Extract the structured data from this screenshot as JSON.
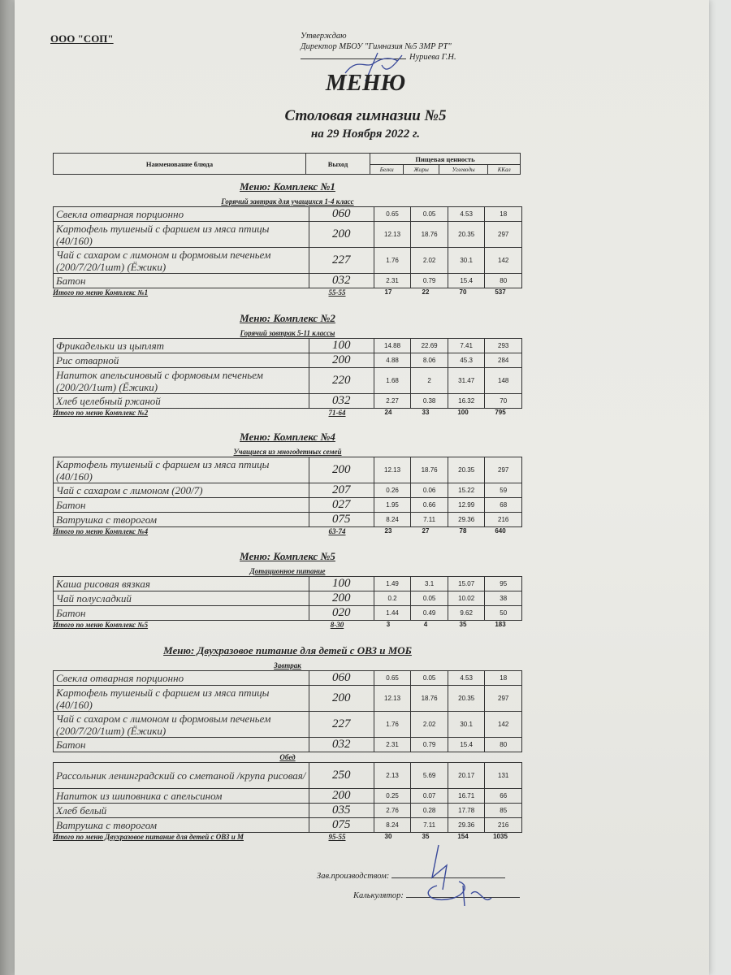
{
  "header": {
    "organization": "ООО \"СОП\"",
    "approval_lines": [
      "Утверждаю",
      "Директор МБОУ \"Гимназия №5 ЗМР РТ\"",
      "Нуриева Г.Н."
    ],
    "title": "МЕНЮ",
    "subtitle": "Столовая гимназии №5",
    "date": "на 29 Ноября 2022 г."
  },
  "table_header": {
    "name": "Наименование блюда",
    "output": "Выход",
    "nutrition": "Пищевая ценность",
    "columns": [
      "Белки",
      "Жиры",
      "Углеводы",
      "ККал"
    ]
  },
  "sections": [
    {
      "title": "Меню: Комплекс №1",
      "groups": [
        {
          "subtitle": "Горячий завтрак для учащихся 1-4 класс",
          "rows": [
            {
              "name": "Свекла отварная порционно",
              "output": "060",
              "values": [
                "0.65",
                "0.05",
                "4.53",
                "18"
              ]
            },
            {
              "name": "Картофель тушеный с фаршем из мяса птицы (40/160)",
              "output": "200",
              "values": [
                "12.13",
                "18.76",
                "20.35",
                "297"
              ]
            },
            {
              "name": "Чай с сахаром с лимоном и формовым печеньем (200/7/20/1шт) (Ёжики)",
              "output": "227",
              "values": [
                "1.76",
                "2.02",
                "30.1",
                "142"
              ]
            },
            {
              "name": "Батон",
              "output": "032",
              "values": [
                "2.31",
                "0.79",
                "15.4",
                "80"
              ]
            }
          ]
        }
      ],
      "total": {
        "label": "Итого по меню Комплекс №1",
        "output": "55-55",
        "values": [
          "17",
          "22",
          "70",
          "537"
        ]
      }
    },
    {
      "title": "Меню: Комплекс №2",
      "groups": [
        {
          "subtitle": "Горячий завтрак 5-11 классы",
          "rows": [
            {
              "name": "Фрикадельки из цыплят",
              "output": "100",
              "values": [
                "14.88",
                "22.69",
                "7.41",
                "293"
              ]
            },
            {
              "name": "Рис отварной",
              "output": "200",
              "values": [
                "4.88",
                "8.06",
                "45.3",
                "284"
              ]
            },
            {
              "name": "Напиток апельсиновый с формовым печеньем (200/20/1шт) (Ёжики)",
              "output": "220",
              "values": [
                "1.68",
                "2",
                "31.47",
                "148"
              ]
            },
            {
              "name": "Хлеб целебный ржаной",
              "output": "032",
              "values": [
                "2.27",
                "0.38",
                "16.32",
                "70"
              ]
            }
          ]
        }
      ],
      "total": {
        "label": "Итого по меню Комплекс №2",
        "output": "71-64",
        "values": [
          "24",
          "33",
          "100",
          "795"
        ]
      }
    },
    {
      "title": "Меню: Комплекс №4",
      "groups": [
        {
          "subtitle": "Учащиеся из многодетных семей",
          "rows": [
            {
              "name": "Картофель тушеный с фаршем из мяса птицы (40/160)",
              "output": "200",
              "values": [
                "12.13",
                "18.76",
                "20.35",
                "297"
              ]
            },
            {
              "name": "Чай с сахаром с лимоном (200/7)",
              "output": "207",
              "values": [
                "0.26",
                "0.06",
                "15.22",
                "59"
              ]
            },
            {
              "name": "Батон",
              "output": "027",
              "values": [
                "1.95",
                "0.66",
                "12.99",
                "68"
              ]
            },
            {
              "name": "Ватрушка с творогом",
              "output": "075",
              "values": [
                "8.24",
                "7.11",
                "29.36",
                "216"
              ]
            }
          ]
        }
      ],
      "total": {
        "label": "Итого по меню Комплекс №4",
        "output": "63-74",
        "values": [
          "23",
          "27",
          "78",
          "640"
        ]
      }
    },
    {
      "title": "Меню: Комплекс №5",
      "groups": [
        {
          "subtitle": "Дотационное питание",
          "rows": [
            {
              "name": "Каша рисовая вязкая",
              "output": "100",
              "values": [
                "1.49",
                "3.1",
                "15.07",
                "95"
              ]
            },
            {
              "name": "Чай полусладкий",
              "output": "200",
              "values": [
                "0.2",
                "0.05",
                "10.02",
                "38"
              ]
            },
            {
              "name": "Батон",
              "output": "020",
              "values": [
                "1.44",
                "0.49",
                "9.62",
                "50"
              ]
            }
          ]
        }
      ],
      "total": {
        "label": "Итого по меню Комплекс №5",
        "output": "8-30",
        "values": [
          "3",
          "4",
          "35",
          "183"
        ]
      }
    },
    {
      "title": "Меню: Двухразовое питание для детей с ОВЗ и МОБ",
      "groups": [
        {
          "subtitle": "Завтрак",
          "rows": [
            {
              "name": "Свекла отварная порционно",
              "output": "060",
              "values": [
                "0.65",
                "0.05",
                "4.53",
                "18"
              ]
            },
            {
              "name": "Картофель тушеный с фаршем из мяса птицы (40/160)",
              "output": "200",
              "values": [
                "12.13",
                "18.76",
                "20.35",
                "297"
              ]
            },
            {
              "name": "Чай с сахаром с лимоном и формовым печеньем (200/7/20/1шт) (Ёжики)",
              "output": "227",
              "values": [
                "1.76",
                "2.02",
                "30.1",
                "142"
              ]
            },
            {
              "name": "Батон",
              "output": "032",
              "values": [
                "2.31",
                "0.79",
                "15.4",
                "80"
              ]
            }
          ]
        },
        {
          "subtitle": "Обед",
          "rows": [
            {
              "name": "Рассольник ленинградский со сметаной /крупа рисовая/",
              "output": "250",
              "values": [
                "2.13",
                "5.69",
                "20.17",
                "131"
              ]
            },
            {
              "name": "Напиток из шиповника с апельсином",
              "output": "200",
              "values": [
                "0.25",
                "0.07",
                "16.71",
                "66"
              ]
            },
            {
              "name": "Хлеб белый",
              "output": "035",
              "values": [
                "2.76",
                "0.28",
                "17.78",
                "85"
              ]
            },
            {
              "name": "Ватрушка с творогом",
              "output": "075",
              "values": [
                "8.24",
                "7.11",
                "29.36",
                "216"
              ]
            }
          ]
        }
      ],
      "total": {
        "label": "Итого по меню Двухразовое питание для детей с ОВЗ и М",
        "output": "95-55",
        "values": [
          "30",
          "35",
          "154",
          "1035"
        ]
      }
    }
  ],
  "signatures": {
    "production_head": "Зав.производством:",
    "calculator": "Калькулятор:"
  }
}
